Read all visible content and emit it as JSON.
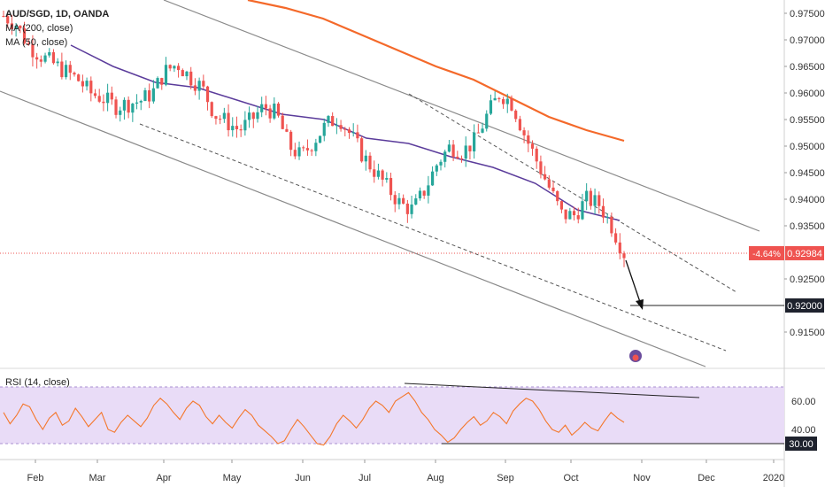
{
  "chart_data": {
    "type": "candlestick",
    "title": "AUD/SGD, 1D, OANDA",
    "indicators": [
      {
        "name": "MA (200, close)",
        "color": "#f4692a"
      },
      {
        "name": "MA (50, close)",
        "color": "#5b3c9b"
      }
    ],
    "x_ticks": [
      "Feb",
      "Mar",
      "Apr",
      "May",
      "Jun",
      "Jul",
      "Aug",
      "Sep",
      "Oct",
      "Nov",
      "Dec",
      "2020"
    ],
    "y_ticks": [
      "0.97500",
      "0.97000",
      "0.96500",
      "0.96000",
      "0.95500",
      "0.95000",
      "0.94500",
      "0.94000",
      "0.93500",
      "0.92500",
      "0.91500"
    ],
    "y_range": [
      0.9085,
      0.9775
    ],
    "last_price": {
      "value": "0.92984",
      "change": "-4.64%"
    },
    "target_level": {
      "value": "0.92000"
    },
    "price_path_x": [
      0,
      0.02,
      0.04,
      0.06,
      0.08,
      0.1,
      0.12,
      0.14,
      0.16,
      0.18,
      0.2,
      0.22,
      0.24,
      0.26,
      0.28,
      0.3,
      0.32,
      0.34,
      0.36,
      0.38,
      0.4,
      0.42,
      0.44,
      0.46,
      0.48,
      0.5,
      0.52,
      0.54,
      0.56,
      0.58,
      0.6,
      0.62,
      0.64,
      0.66,
      0.68,
      0.7,
      0.72,
      0.74,
      0.76,
      0.78,
      0.8,
      0.82,
      0.84,
      0.86,
      0.88,
      0.9,
      0.92,
      0.94,
      0.96,
      0.98,
      1.0
    ],
    "price_path_y": [
      0.9745,
      0.973,
      0.969,
      0.967,
      0.9655,
      0.964,
      0.9625,
      0.96,
      0.959,
      0.9575,
      0.958,
      0.9585,
      0.96,
      0.964,
      0.9655,
      0.963,
      0.961,
      0.956,
      0.9545,
      0.953,
      0.955,
      0.9575,
      0.956,
      0.95,
      0.948,
      0.951,
      0.954,
      0.9555,
      0.952,
      0.948,
      0.945,
      0.942,
      0.939,
      0.938,
      0.942,
      0.947,
      0.95,
      0.949,
      0.951,
      0.956,
      0.96,
      0.958,
      0.952,
      0.947,
      0.942,
      0.937,
      0.937,
      0.94,
      0.939,
      0.935,
      0.9298
    ],
    "ma200_values": [
      0.9775,
      0.976,
      0.974,
      0.971,
      0.968,
      0.965,
      0.9625,
      0.959,
      0.9555,
      0.953,
      0.951
    ],
    "ma50_values": [
      0.969,
      0.965,
      0.962,
      0.961,
      0.9585,
      0.956,
      0.955,
      0.9515,
      0.9505,
      0.948,
      0.946,
      0.943,
      0.938,
      0.936
    ],
    "rsi": {
      "title": "RSI (14, close)",
      "y_ticks": [
        "60.00",
        "40.00"
      ],
      "level_label": "30.00",
      "band": [
        30,
        70
      ],
      "values": [
        52,
        44,
        50,
        58,
        56,
        47,
        40,
        48,
        52,
        43,
        46,
        55,
        49,
        42,
        47,
        52,
        40,
        38,
        45,
        50,
        46,
        42,
        48,
        57,
        62,
        58,
        52,
        47,
        55,
        60,
        57,
        49,
        44,
        50,
        45,
        41,
        48,
        54,
        50,
        43,
        39,
        35,
        30,
        32,
        40,
        47,
        42,
        36,
        30,
        29,
        35,
        44,
        50,
        46,
        41,
        47,
        55,
        60,
        57,
        52,
        60,
        63,
        66,
        60,
        52,
        47,
        40,
        36,
        31,
        34,
        40,
        45,
        49,
        43,
        46,
        52,
        49,
        44,
        53,
        58,
        62,
        60,
        54,
        46,
        40,
        38,
        43,
        36,
        40,
        45,
        41,
        39,
        46,
        52,
        48,
        45
      ]
    }
  }
}
